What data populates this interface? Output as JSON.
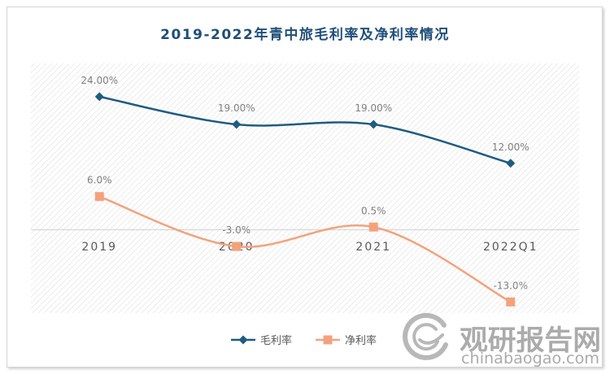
{
  "chart_data": {
    "type": "line",
    "title": "2019-2022年青中旅毛利率及净利率情况",
    "categories": [
      "2019",
      "2020",
      "2021",
      "2022Q1"
    ],
    "series": [
      {
        "name": "毛利率",
        "values": [
          24,
          19,
          19,
          12
        ],
        "data_labels": [
          "24.00%",
          "19.00%",
          "19.00%",
          "12.00%"
        ],
        "color": "#1f5c82",
        "marker": "diamond"
      },
      {
        "name": "净利率",
        "values": [
          6,
          -3,
          0.5,
          -13
        ],
        "data_labels": [
          "6.0%",
          "-3.0%",
          "0.5%",
          "-13.0%"
        ],
        "color": "#f4a27c",
        "marker": "square"
      }
    ],
    "ylim": [
      -15,
      30
    ],
    "smooth": true,
    "grid": false,
    "legend": "bottom",
    "title_color": "#1f4e79"
  },
  "watermark": {
    "brand": "观研报告网",
    "url": "chinabaogao.com"
  }
}
